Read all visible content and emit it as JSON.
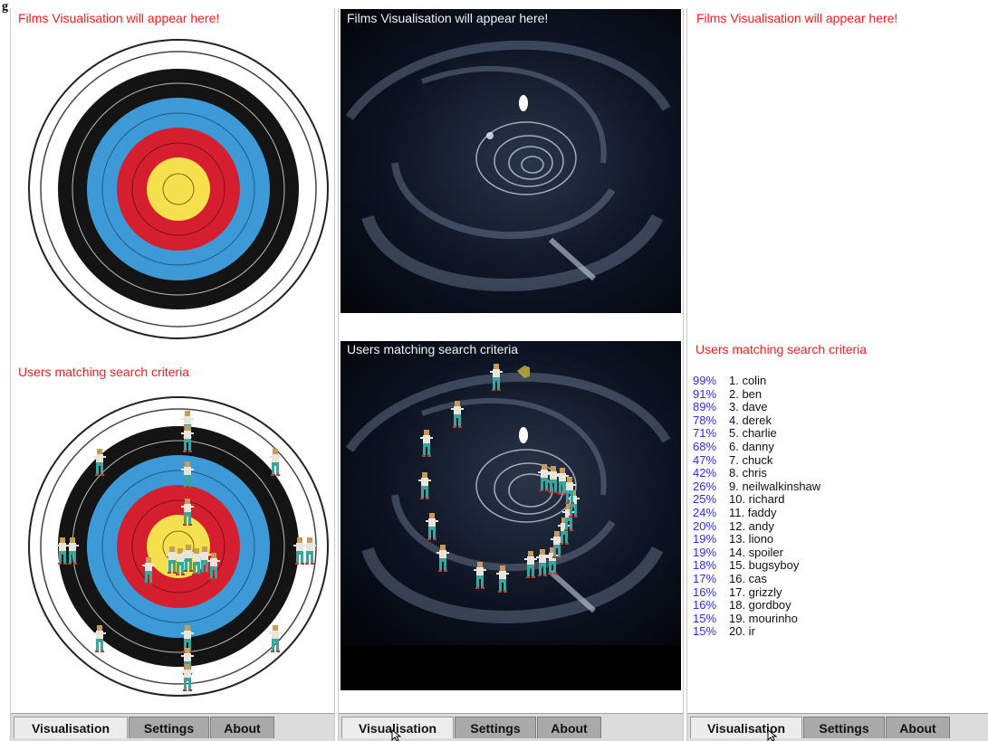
{
  "figure_label": "g",
  "panels": [
    {
      "films_title": "Films Visualisation will appear here!",
      "users_title": "Users matching search criteria",
      "tabs": [
        "Visualisation",
        "Settings",
        "About"
      ],
      "active_tab": "Visualisation"
    },
    {
      "films_title": "Films Visualisation will appear here!",
      "users_title": "Users matching search criteria",
      "tabs": [
        "Visualisation",
        "Settings",
        "About"
      ],
      "active_tab": "Visualisation"
    },
    {
      "films_title": "Films Visualisation will appear here!",
      "users_title": "Users matching search criteria",
      "tabs": [
        "Visualisation",
        "Settings",
        "About"
      ],
      "active_tab": "Visualisation"
    }
  ],
  "target_colors": [
    "#ffffff",
    "#111111",
    "#3d9ad6",
    "#d61f2e",
    "#f5e04e"
  ],
  "users": [
    {
      "pct": "99%",
      "name": "1. colin"
    },
    {
      "pct": "91%",
      "name": "2. ben"
    },
    {
      "pct": "89%",
      "name": "3. dave"
    },
    {
      "pct": "78%",
      "name": "4. derek"
    },
    {
      "pct": "71%",
      "name": "5. charlie"
    },
    {
      "pct": "68%",
      "name": "6. danny"
    },
    {
      "pct": "47%",
      "name": "7. chuck"
    },
    {
      "pct": "42%",
      "name": "8. chris"
    },
    {
      "pct": "26%",
      "name": "9. neilwalkinshaw"
    },
    {
      "pct": "25%",
      "name": "10. richard"
    },
    {
      "pct": "24%",
      "name": "11. faddy"
    },
    {
      "pct": "20%",
      "name": "12. andy"
    },
    {
      "pct": "19%",
      "name": "13. liono"
    },
    {
      "pct": "19%",
      "name": "14. spoiler"
    },
    {
      "pct": "18%",
      "name": "15. bugsyboy"
    },
    {
      "pct": "17%",
      "name": "16. cas"
    },
    {
      "pct": "16%",
      "name": "17. grizzly"
    },
    {
      "pct": "16%",
      "name": "18. gordboy"
    },
    {
      "pct": "15%",
      "name": "19. mourinho"
    },
    {
      "pct": "15%",
      "name": "20. ir"
    }
  ]
}
